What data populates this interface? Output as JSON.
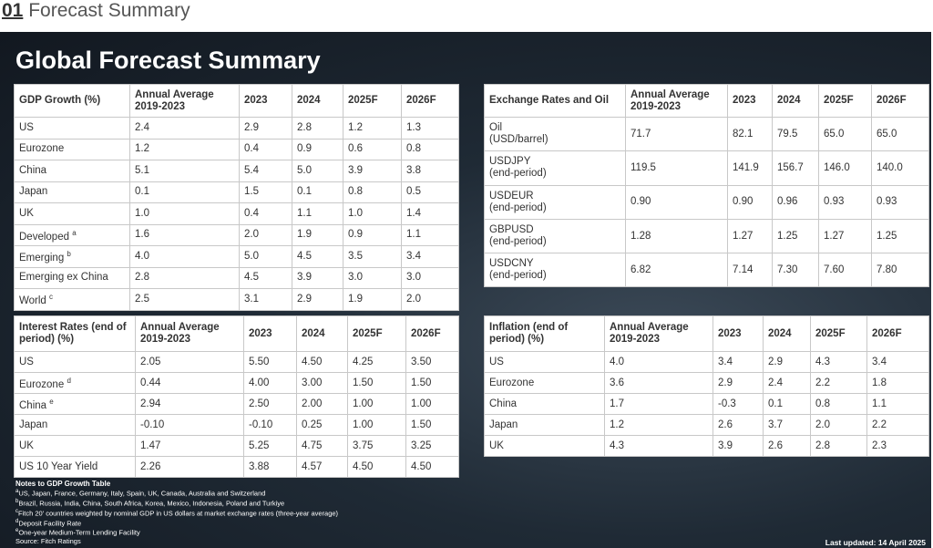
{
  "header": {
    "number": "01",
    "title": "Forecast Summary"
  },
  "panel_title": "Global Forecast Summary",
  "tables": [
    {
      "headers": [
        "GDP Growth (%)",
        "Annual Average 2019-2023",
        "2023",
        "2024",
        "2025F",
        "2026F"
      ],
      "rows": [
        {
          "label": "US",
          "values": [
            "2.4",
            "2.9",
            "2.8",
            "1.2",
            "1.3"
          ]
        },
        {
          "label": "Eurozone",
          "values": [
            "1.2",
            "0.4",
            "0.9",
            "0.6",
            "0.8"
          ]
        },
        {
          "label": "China",
          "values": [
            "5.1",
            "5.4",
            "5.0",
            "3.9",
            "3.8"
          ]
        },
        {
          "label": "Japan",
          "values": [
            "0.1",
            "1.5",
            "0.1",
            "0.8",
            "0.5"
          ]
        },
        {
          "label": "UK",
          "values": [
            "1.0",
            "0.4",
            "1.1",
            "1.0",
            "1.4"
          ]
        },
        {
          "label": "Developed",
          "note": "a",
          "values": [
            "1.6",
            "2.0",
            "1.9",
            "0.9",
            "1.1"
          ]
        },
        {
          "label": "Emerging",
          "note": "b",
          "values": [
            "4.0",
            "5.0",
            "4.5",
            "3.5",
            "3.4"
          ]
        },
        {
          "label": "Emerging ex China",
          "values": [
            "2.8",
            "4.5",
            "3.9",
            "3.0",
            "3.0"
          ]
        },
        {
          "label": "World",
          "note": "c",
          "values": [
            "2.5",
            "3.1",
            "2.9",
            "1.9",
            "2.0"
          ]
        }
      ]
    },
    {
      "headers": [
        "Exchange Rates and Oil",
        "Annual Average 2019-2023",
        "2023",
        "2024",
        "2025F",
        "2026F"
      ],
      "rows": [
        {
          "label": "Oil",
          "sublabel": "(USD/barrel)",
          "values": [
            "71.7",
            "82.1",
            "79.5",
            "65.0",
            "65.0"
          ]
        },
        {
          "label": "USDJPY",
          "sublabel": "(end-period)",
          "values": [
            "119.5",
            "141.9",
            "156.7",
            "146.0",
            "140.0"
          ]
        },
        {
          "label": "USDEUR",
          "sublabel": "(end-period)",
          "values": [
            "0.90",
            "0.90",
            "0.96",
            "0.93",
            "0.93"
          ]
        },
        {
          "label": "GBPUSD",
          "sublabel": "(end-period)",
          "values": [
            "1.28",
            "1.27",
            "1.25",
            "1.27",
            "1.25"
          ]
        },
        {
          "label": "USDCNY",
          "sublabel": "(end-period)",
          "values": [
            "6.82",
            "7.14",
            "7.30",
            "7.60",
            "7.80"
          ]
        }
      ]
    },
    {
      "headers": [
        "Interest Rates (end of period) (%)",
        "Annual Average 2019-2023",
        "2023",
        "2024",
        "2025F",
        "2026F"
      ],
      "rows": [
        {
          "label": "US",
          "values": [
            "2.05",
            "5.50",
            "4.50",
            "4.25",
            "3.50"
          ]
        },
        {
          "label": "Eurozone",
          "note": "d",
          "values": [
            "0.44",
            "4.00",
            "3.00",
            "1.50",
            "1.50"
          ]
        },
        {
          "label": "China",
          "note": "e",
          "values": [
            "2.94",
            "2.50",
            "2.00",
            "1.00",
            "1.00"
          ]
        },
        {
          "label": "Japan",
          "values": [
            "-0.10",
            "-0.10",
            "0.25",
            "1.00",
            "1.50"
          ]
        },
        {
          "label": "UK",
          "values": [
            "1.47",
            "5.25",
            "4.75",
            "3.75",
            "3.25"
          ]
        },
        {
          "label": "US 10 Year Yield",
          "values": [
            "2.26",
            "3.88",
            "4.57",
            "4.50",
            "4.50"
          ]
        }
      ]
    },
    {
      "headers": [
        "Inflation (end of period) (%)",
        "Annual Average 2019-2023",
        "2023",
        "2024",
        "2025F",
        "2026F"
      ],
      "rows": [
        {
          "label": "US",
          "values": [
            "4.0",
            "3.4",
            "2.9",
            "4.3",
            "3.4"
          ]
        },
        {
          "label": "Eurozone",
          "values": [
            "3.6",
            "2.9",
            "2.4",
            "2.2",
            "1.8"
          ]
        },
        {
          "label": "China",
          "values": [
            "1.7",
            "-0.3",
            "0.1",
            "0.8",
            "1.1"
          ]
        },
        {
          "label": "Japan",
          "values": [
            "1.2",
            "2.6",
            "3.7",
            "2.0",
            "2.2"
          ]
        },
        {
          "label": "UK",
          "values": [
            "4.3",
            "3.9",
            "2.6",
            "2.8",
            "2.3"
          ]
        }
      ]
    }
  ],
  "notes": {
    "title": "Notes to GDP Growth Table",
    "items": [
      {
        "mark": "a",
        "text": "US, Japan, France, Germany, Italy, Spain, UK, Canada, Australia and Switzerland"
      },
      {
        "mark": "b",
        "text": "Brazil, Russia, India, China, South Africa, Korea, Mexico, Indonesia, Poland and Turkiye"
      },
      {
        "mark": "c",
        "text": "Fitch 20' countries weighted by nominal GDP in US dollars at market exchange rates (three-year average)"
      },
      {
        "mark": "d",
        "text": "Deposit Facility Rate"
      },
      {
        "mark": "e",
        "text": "One-year Medium-Term Lending Facility"
      }
    ],
    "source": "Source: Fitch Ratings"
  },
  "last_updated": "Last updated: 14 April 2025"
}
